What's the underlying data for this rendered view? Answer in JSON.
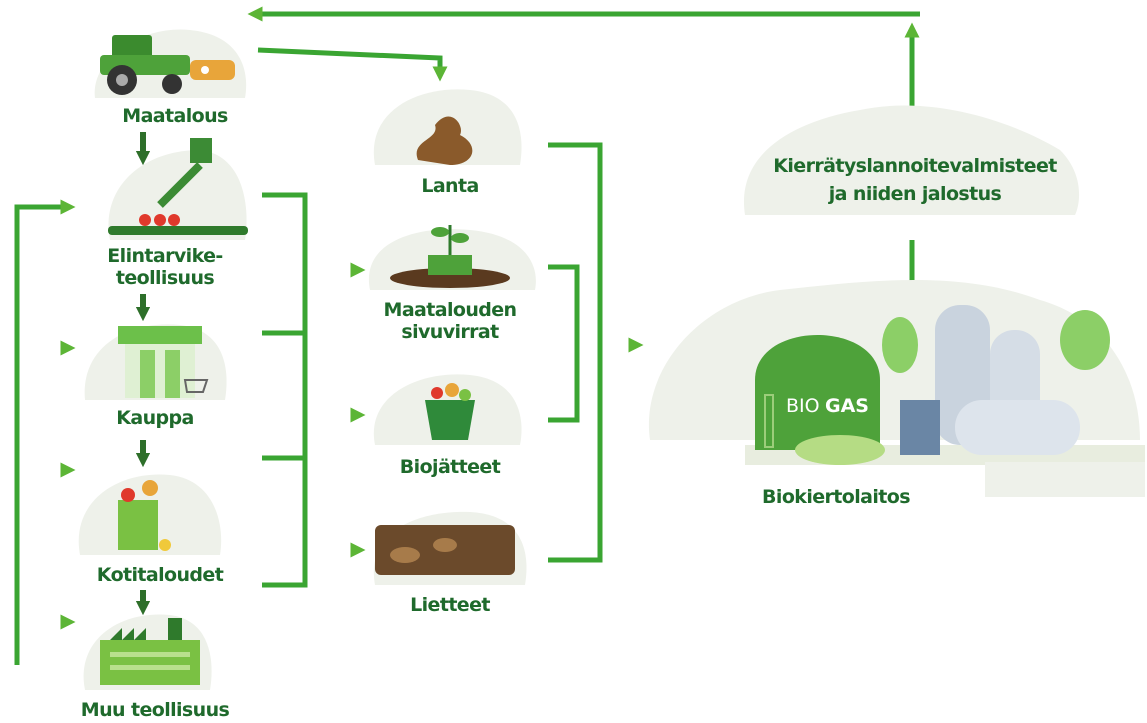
{
  "sources": [
    {
      "lines": [
        "Maatalous"
      ]
    },
    {
      "lines": [
        "Elintarvike-",
        "teollisuus"
      ]
    },
    {
      "lines": [
        "Kauppa"
      ]
    },
    {
      "lines": [
        "Kotitaloudet"
      ]
    },
    {
      "lines": [
        "Muu teollisuus"
      ]
    }
  ],
  "streams": [
    {
      "lines": [
        "Lanta"
      ]
    },
    {
      "lines": [
        "Maatalouden",
        "sivuvirrat"
      ]
    },
    {
      "lines": [
        "Biojätteet"
      ]
    },
    {
      "lines": [
        "Lietteet"
      ]
    }
  ],
  "output": {
    "lines": [
      "Kierrätyslannoitevalmisteet",
      "ja niiden jalostus"
    ]
  },
  "plant": {
    "label": "Biokiertolaitos",
    "sign_light": "BIO",
    "sign_bold": "GAS"
  }
}
